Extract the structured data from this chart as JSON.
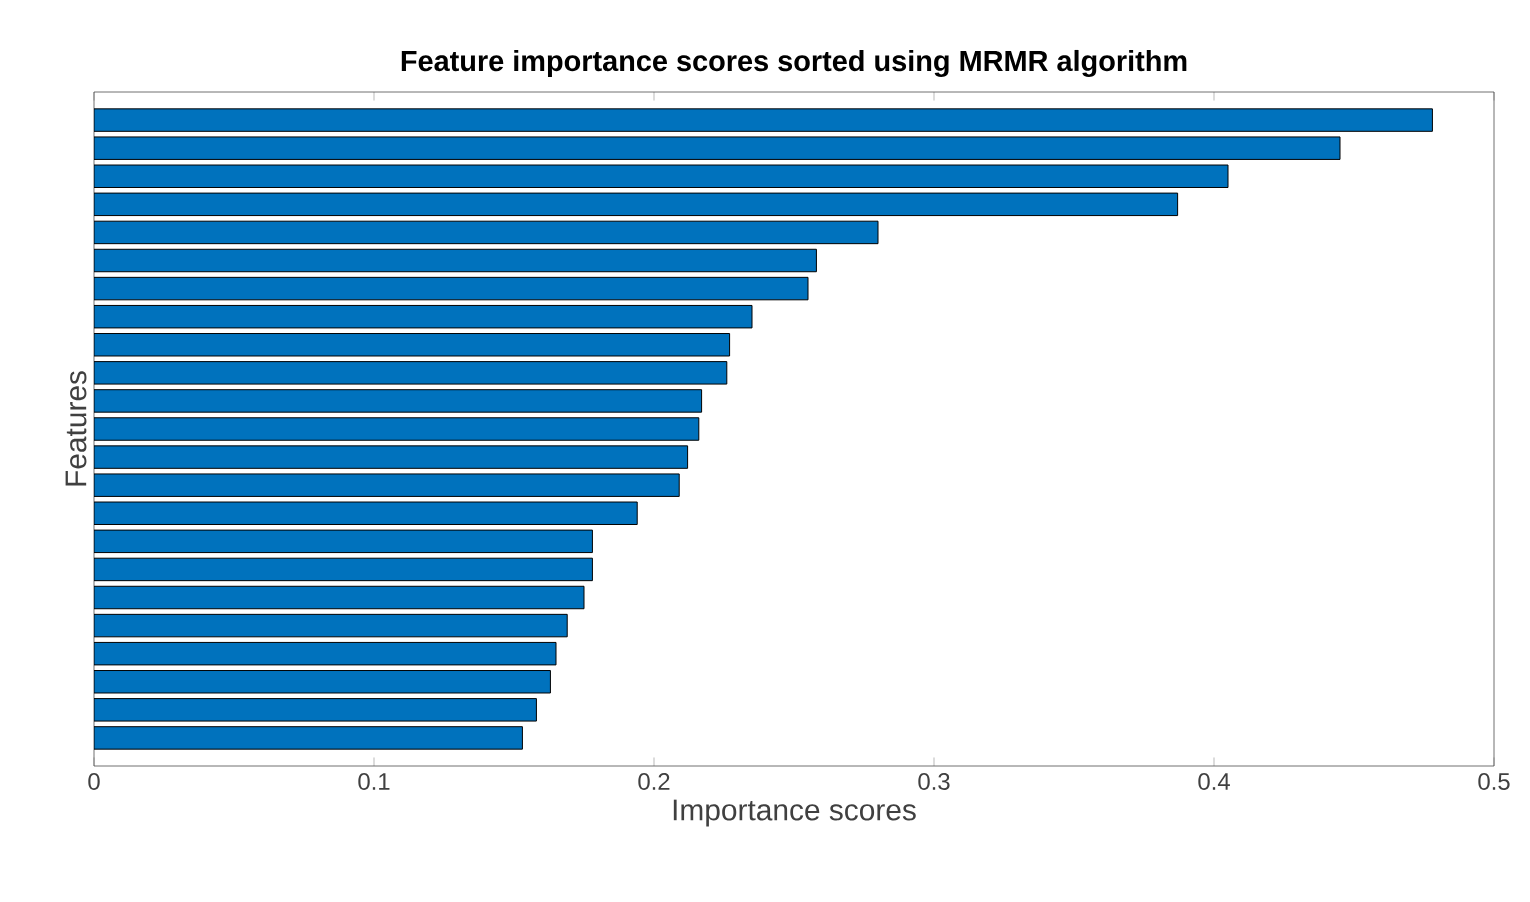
{
  "chart_data": {
    "type": "bar",
    "orientation": "horizontal",
    "title": "Feature importance scores sorted using MRMR algorithm",
    "xlabel": "Importance scores",
    "ylabel": "Features",
    "categories": [
      null,
      null,
      null,
      null,
      null,
      null,
      null,
      null,
      null,
      null,
      null,
      null,
      null,
      null,
      null,
      null,
      null,
      null,
      null,
      null,
      null,
      null,
      null
    ],
    "values": [
      0.478,
      0.445,
      0.405,
      0.387,
      0.28,
      0.258,
      0.255,
      0.235,
      0.227,
      0.226,
      0.217,
      0.216,
      0.212,
      0.209,
      0.194,
      0.178,
      0.178,
      0.175,
      0.169,
      0.165,
      0.163,
      0.158,
      0.153
    ],
    "color": "#0072bd",
    "xlim": [
      0,
      0.5
    ],
    "xticks": [
      0,
      0.1,
      0.2,
      0.3,
      0.4,
      0.5
    ]
  }
}
